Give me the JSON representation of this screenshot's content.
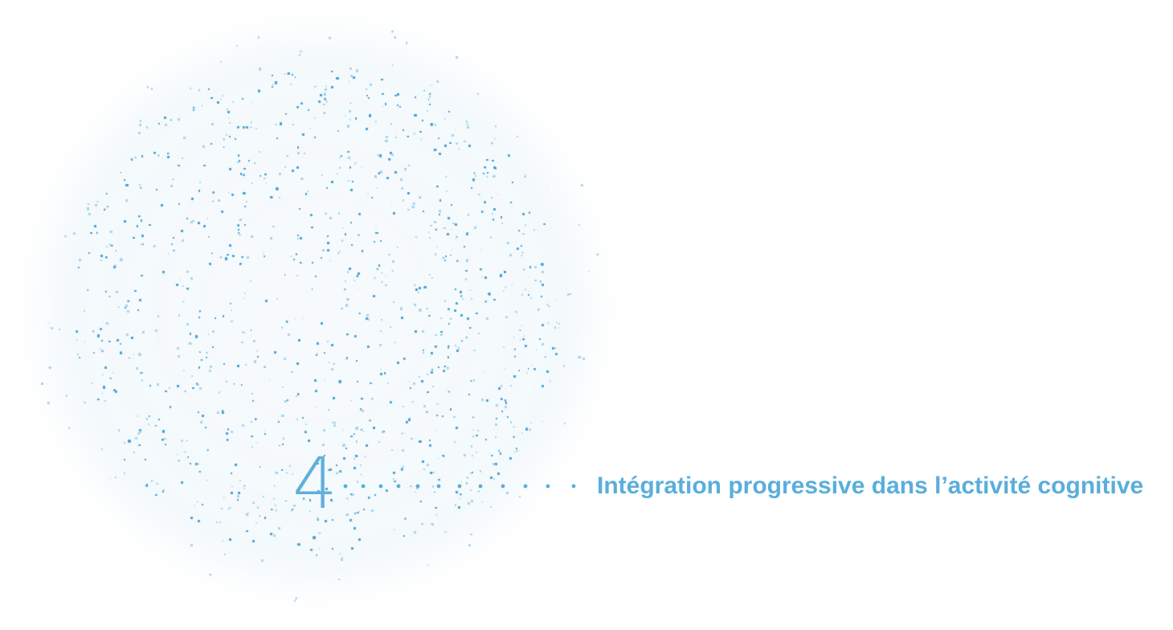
{
  "step": {
    "number": "4",
    "label": "Intégration progressive dans l’activité cognitive"
  },
  "colors": {
    "accent": "#5aaedb",
    "particle_dark": "#4aa3d4",
    "particle_light": "#a9d4ec",
    "background": "#ffffff"
  }
}
